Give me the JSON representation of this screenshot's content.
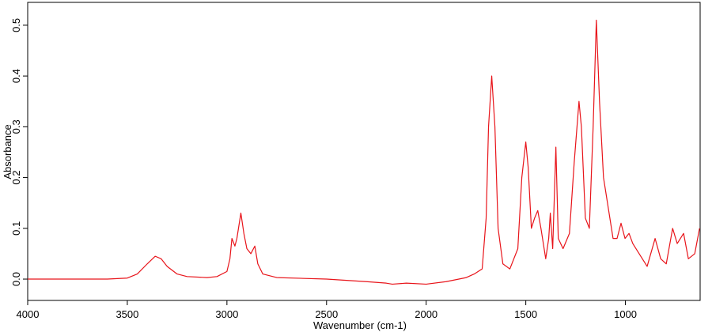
{
  "chart_data": {
    "type": "line",
    "xlabel": "Wavenumber (cm-1)",
    "ylabel": "Absorbance",
    "xlim": [
      4000,
      625
    ],
    "ylim": [
      -0.042,
      0.545
    ],
    "xticks": [
      4000,
      3500,
      3000,
      2500,
      2000,
      1500,
      1000
    ],
    "yticks": [
      {
        "value": 0,
        "label": "0.0"
      },
      0.1,
      0.2,
      0.3,
      0.4,
      0.5
    ],
    "series": [
      {
        "name": "Absorbance",
        "color": "#e8141a",
        "x": [
          4000,
          3600,
          3500,
          3450,
          3400,
          3360,
          3330,
          3300,
          3250,
          3200,
          3100,
          3050,
          3000,
          2985,
          2975,
          2960,
          2950,
          2930,
          2915,
          2900,
          2880,
          2860,
          2845,
          2820,
          2750,
          2500,
          2300,
          2200,
          2170,
          2100,
          2000,
          1900,
          1799,
          1759,
          1719,
          1699,
          1687,
          1671,
          1655,
          1639,
          1615,
          1580,
          1540,
          1520,
          1500,
          1488,
          1472,
          1456,
          1440,
          1424,
          1400,
          1385,
          1377,
          1365,
          1349,
          1337,
          1313,
          1281,
          1257,
          1233,
          1221,
          1201,
          1181,
          1162,
          1146,
          1130,
          1110,
          1090,
          1062,
          1042,
          1022,
          1002,
          982,
          963,
          931,
          891,
          851,
          823,
          795,
          763,
          740,
          708,
          684,
          652,
          628
        ],
        "values": [
          0.0,
          0.0,
          0.002,
          0.01,
          0.03,
          0.045,
          0.04,
          0.025,
          0.01,
          0.005,
          0.003,
          0.005,
          0.015,
          0.04,
          0.08,
          0.065,
          0.08,
          0.13,
          0.09,
          0.06,
          0.05,
          0.065,
          0.03,
          0.01,
          0.003,
          0.0,
          -0.005,
          -0.008,
          -0.01,
          -0.008,
          -0.01,
          -0.005,
          0.003,
          0.01,
          0.02,
          0.12,
          0.3,
          0.4,
          0.3,
          0.1,
          0.03,
          0.02,
          0.06,
          0.2,
          0.27,
          0.22,
          0.1,
          0.12,
          0.135,
          0.1,
          0.04,
          0.08,
          0.13,
          0.06,
          0.26,
          0.08,
          0.06,
          0.09,
          0.23,
          0.35,
          0.3,
          0.12,
          0.1,
          0.3,
          0.51,
          0.35,
          0.2,
          0.15,
          0.08,
          0.08,
          0.11,
          0.08,
          0.09,
          0.07,
          0.05,
          0.025,
          0.08,
          0.04,
          0.03,
          0.1,
          0.07,
          0.09,
          0.04,
          0.05,
          0.1
        ]
      }
    ]
  }
}
